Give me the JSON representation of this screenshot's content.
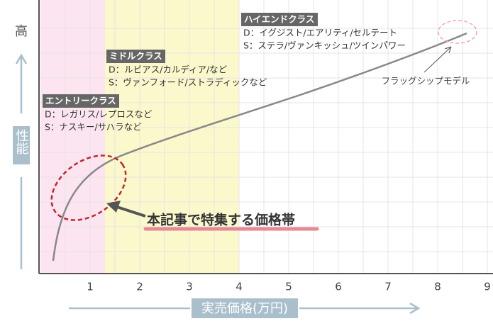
{
  "y_axis": {
    "top_label": "高",
    "label": "性能"
  },
  "x_axis": {
    "label": "実売価格(万円)",
    "xlim": [
      0,
      9.1
    ],
    "ticks": [
      1,
      2,
      3,
      4,
      5,
      6,
      7,
      8,
      9
    ]
  },
  "bands": [
    {
      "from": 0,
      "to": 1.3,
      "color": "#fce4f1"
    },
    {
      "from": 1.3,
      "to": 4,
      "color": "#fbf9cb"
    }
  ],
  "classes": [
    {
      "title": "エントリークラス",
      "lines": [
        "D：レガリス/レプロスなど",
        "S：ナスキー/サハラなど"
      ]
    },
    {
      "title": "ミドルクラス",
      "lines": [
        "D：ルビアス/カルディア/など",
        "S：ヴァンフォード/ストラディックなど"
      ]
    },
    {
      "title": "ハイエンドクラス",
      "lines": [
        "D：イグジスト/エアリティ/セルテート",
        "S：ステラ/ヴァンキッシュ/ツインパワー"
      ]
    }
  ],
  "annotations": {
    "featured": "本記事で特集する価格帯",
    "flagship": "フラッグシップモデル"
  }
}
